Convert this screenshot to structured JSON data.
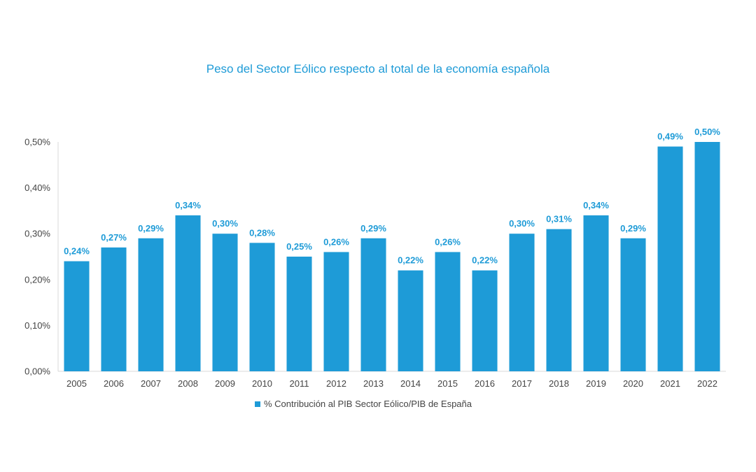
{
  "chart_data": {
    "type": "bar",
    "title": "Peso del Sector Eólico respecto al total de la economía española",
    "categories": [
      "2005",
      "2006",
      "2007",
      "2008",
      "2009",
      "2010",
      "2011",
      "2012",
      "2013",
      "2014",
      "2015",
      "2016",
      "2017",
      "2018",
      "2019",
      "2020",
      "2021",
      "2022"
    ],
    "series": [
      {
        "name": "% Contribución al PIB Sector Eólico/PIB de España",
        "values": [
          0.24,
          0.27,
          0.29,
          0.34,
          0.3,
          0.28,
          0.25,
          0.26,
          0.29,
          0.22,
          0.26,
          0.22,
          0.3,
          0.31,
          0.34,
          0.29,
          0.49,
          0.5
        ],
        "data_labels": [
          "0,24%",
          "0,27%",
          "0,29%",
          "0,34%",
          "0,30%",
          "0,28%",
          "0,25%",
          "0,26%",
          "0,29%",
          "0,22%",
          "0,26%",
          "0,22%",
          "0,30%",
          "0,31%",
          "0,34%",
          "0,29%",
          "0,49%",
          "0,50%"
        ]
      }
    ],
    "y_ticks": [
      0,
      0.1,
      0.2,
      0.3,
      0.4,
      0.5
    ],
    "y_tick_labels": [
      "0,00%",
      "0,10%",
      "0,20%",
      "0,30%",
      "0,40%",
      "0,50%"
    ],
    "ylim": [
      0,
      0.5
    ],
    "xlabel": "",
    "ylabel": "",
    "grid": false,
    "legend_position": "bottom-center"
  },
  "colors": {
    "bar": "#1e9bd7",
    "title": "#1e9bd7",
    "data_label": "#1e9bd7",
    "axis_text": "#444444",
    "axis_line": "#d9d9d9"
  }
}
